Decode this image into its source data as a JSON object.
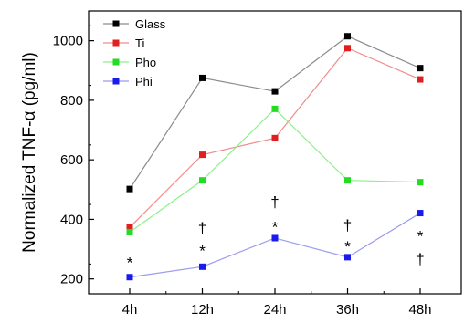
{
  "chart_data": {
    "type": "line",
    "title": "",
    "xlabel": "",
    "ylabel": "Normalized TNF-α (pg/ml)",
    "categories": [
      "4h",
      "12h",
      "24h",
      "36h",
      "48h"
    ],
    "ylim": [
      150,
      1100
    ],
    "yticks": [
      200,
      400,
      600,
      800,
      1000
    ],
    "grid": false,
    "legend_position": "top-left",
    "series": [
      {
        "name": "Glass",
        "color": "#000000",
        "line_color": "#8c8c8c",
        "values": [
          502,
          875,
          830,
          1015,
          908
        ]
      },
      {
        "name": "Ti",
        "color": "#e02020",
        "line_color": "#ee8c8c",
        "values": [
          373,
          617,
          673,
          975,
          870
        ]
      },
      {
        "name": "Pho",
        "color": "#22dd22",
        "line_color": "#8cf08c",
        "values": [
          357,
          531,
          771,
          531,
          525
        ]
      },
      {
        "name": "Phi",
        "color": "#1a1aee",
        "line_color": "#9a9aee",
        "values": [
          206,
          241,
          337,
          273,
          421
        ]
      }
    ],
    "annotations": [
      {
        "category": "4h",
        "y": 255,
        "text": "*"
      },
      {
        "category": "12h",
        "y": 372,
        "text": "†"
      },
      {
        "category": "12h",
        "y": 296,
        "text": "*"
      },
      {
        "category": "24h",
        "y": 460,
        "text": "†"
      },
      {
        "category": "24h",
        "y": 375,
        "text": "*"
      },
      {
        "category": "36h",
        "y": 382,
        "text": "†"
      },
      {
        "category": "36h",
        "y": 310,
        "text": "*"
      },
      {
        "category": "48h",
        "y": 345,
        "text": "*"
      },
      {
        "category": "48h",
        "y": 268,
        "text": "†"
      }
    ]
  }
}
